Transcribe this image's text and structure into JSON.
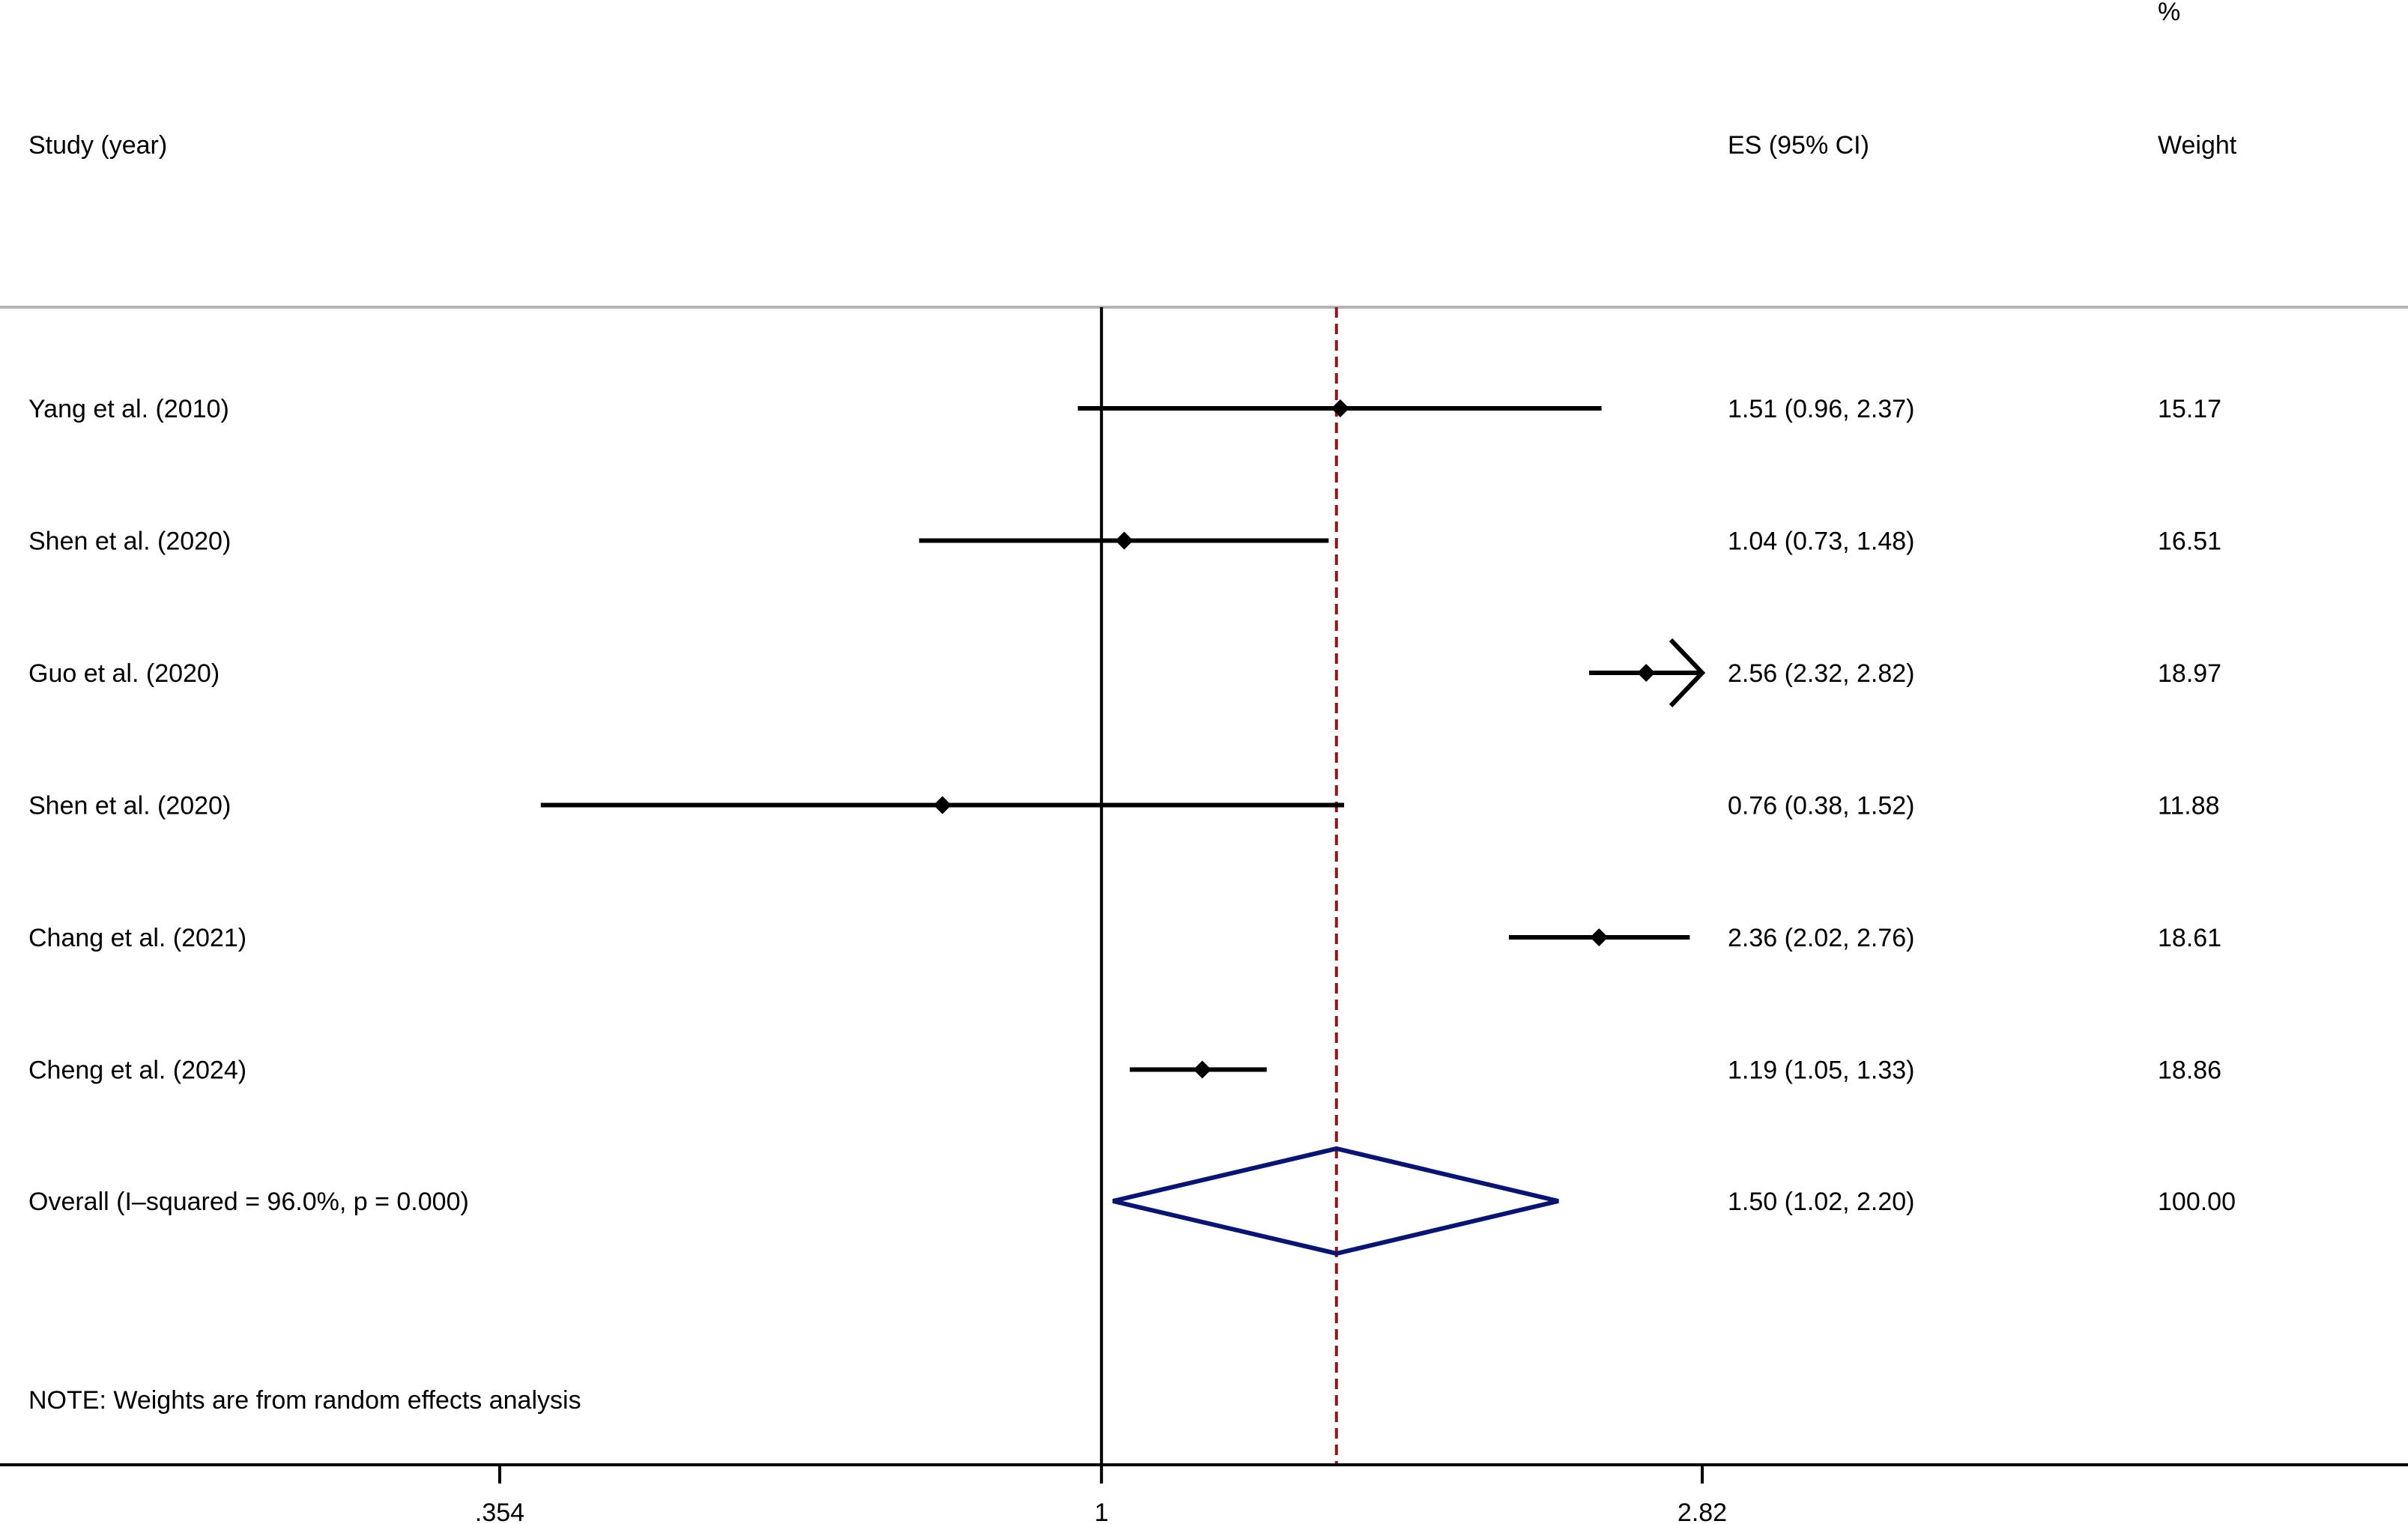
{
  "chart_data": {
    "type": "forest",
    "headers": {
      "study": "Study (year)",
      "es": "ES (95% CI)",
      "weight_top": "%",
      "weight": "Weight"
    },
    "x_scale": "log",
    "xlim": [
      0.354,
      2.82
    ],
    "xticks": [
      {
        "value": 0.354,
        "label": ".354"
      },
      {
        "value": 1,
        "label": "1"
      },
      {
        "value": 2.82,
        "label": "2.82"
      }
    ],
    "null_line": 1,
    "studies": [
      {
        "label": "Yang et al. (2010)",
        "es": 1.51,
        "lo": 0.96,
        "hi": 2.37,
        "es_text": "1.51 (0.96, 2.37)",
        "weight": "15.17"
      },
      {
        "label": "Shen et al. (2020)",
        "es": 1.04,
        "lo": 0.73,
        "hi": 1.48,
        "es_text": "1.04 (0.73, 1.48)",
        "weight": "16.51"
      },
      {
        "label": "Guo et al. (2020)",
        "es": 2.56,
        "lo": 2.32,
        "hi": 2.82,
        "es_text": "2.56 (2.32, 2.82)",
        "weight": "18.97"
      },
      {
        "label": "Shen et al. (2020)",
        "es": 0.76,
        "lo": 0.38,
        "hi": 1.52,
        "es_text": "0.76 (0.38, 1.52)",
        "weight": "11.88"
      },
      {
        "label": "Chang et al. (2021)",
        "es": 2.36,
        "lo": 2.02,
        "hi": 2.76,
        "es_text": "2.36 (2.02, 2.76)",
        "weight": "18.61"
      },
      {
        "label": "Cheng et al. (2024)",
        "es": 1.19,
        "lo": 1.05,
        "hi": 1.33,
        "es_text": "1.19 (1.05, 1.33)",
        "weight": "18.86"
      }
    ],
    "overall": {
      "label": "Overall  (I–squared = 96.0%, p = 0.000)",
      "es": 1.5,
      "lo": 1.02,
      "hi": 2.2,
      "es_text": "1.50 (1.02, 2.20)",
      "weight": "100.00"
    },
    "note": "NOTE: Weights are from random effects analysis",
    "colors": {
      "ci_line": "#000000",
      "overall_diamond": "#0a1570",
      "overall_line": "#8b1a1a",
      "header_rule": "#b4b4b4"
    }
  }
}
